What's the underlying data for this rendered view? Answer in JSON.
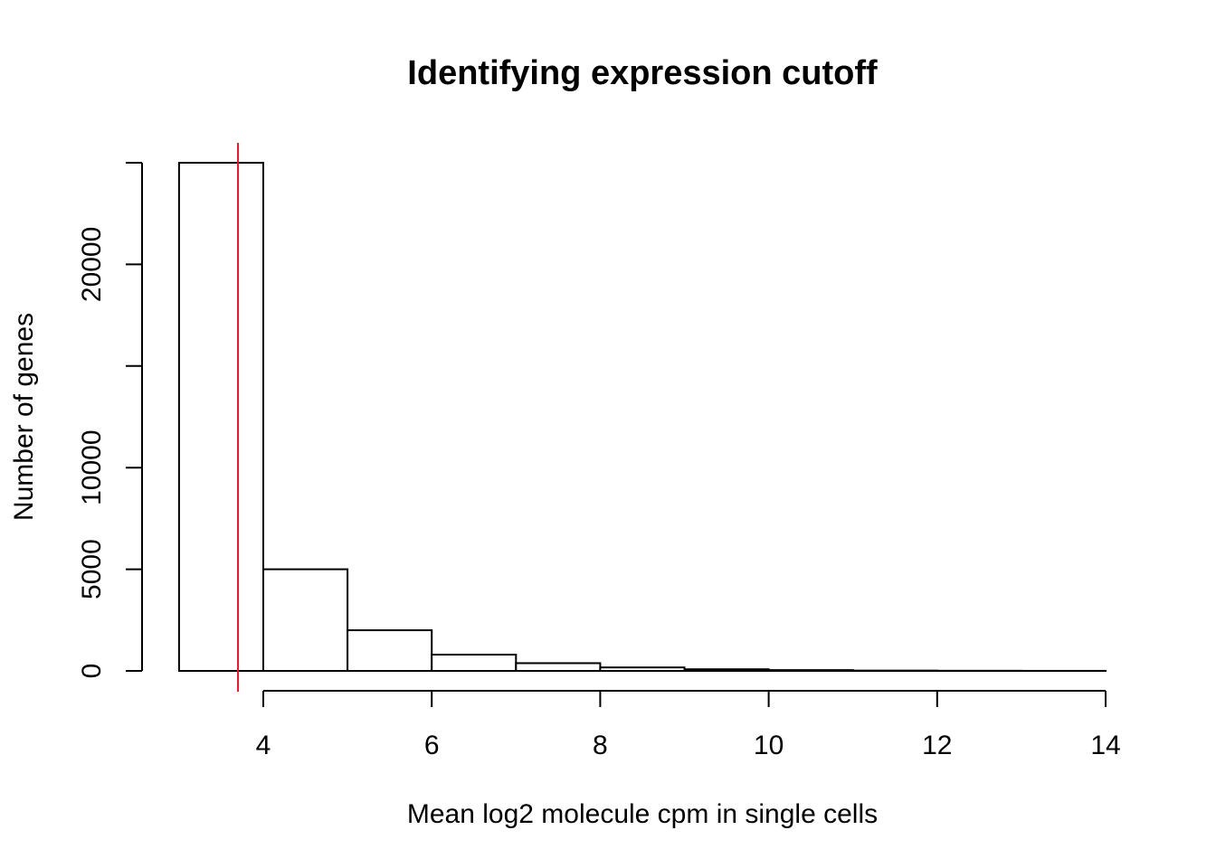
{
  "chart_data": {
    "type": "bar",
    "title": "Identifying expression cutoff",
    "xlabel": "Mean log2 molecule cpm in single cells",
    "ylabel": "Number of genes",
    "bins": [
      {
        "x0": 3,
        "x1": 4,
        "count": 25000
      },
      {
        "x0": 4,
        "x1": 5,
        "count": 5000
      },
      {
        "x0": 5,
        "x1": 6,
        "count": 2000
      },
      {
        "x0": 6,
        "x1": 7,
        "count": 800
      },
      {
        "x0": 7,
        "x1": 8,
        "count": 380
      },
      {
        "x0": 8,
        "x1": 9,
        "count": 170
      },
      {
        "x0": 9,
        "x1": 10,
        "count": 80
      },
      {
        "x0": 10,
        "x1": 11,
        "count": 40
      },
      {
        "x0": 11,
        "x1": 12,
        "count": 15
      },
      {
        "x0": 12,
        "x1": 13,
        "count": 7
      },
      {
        "x0": 13,
        "x1": 14,
        "count": 3
      }
    ],
    "xticks": [
      4,
      6,
      8,
      10,
      12,
      14
    ],
    "xtick_labels": [
      "4",
      "6",
      "8",
      "10",
      "12",
      "14"
    ],
    "yticks": [
      0,
      5000,
      10000,
      15000,
      20000,
      25000
    ],
    "ytick_labels": [
      "0",
      "5000",
      "10000",
      "",
      "20000",
      ""
    ],
    "xlim": [
      3,
      14
    ],
    "ylim": [
      0,
      25000
    ],
    "cutoff": {
      "x": 3.7,
      "color": "#e41a1c"
    },
    "grid": false,
    "bar_fill": "#ffffff",
    "bar_stroke": "#000000"
  }
}
